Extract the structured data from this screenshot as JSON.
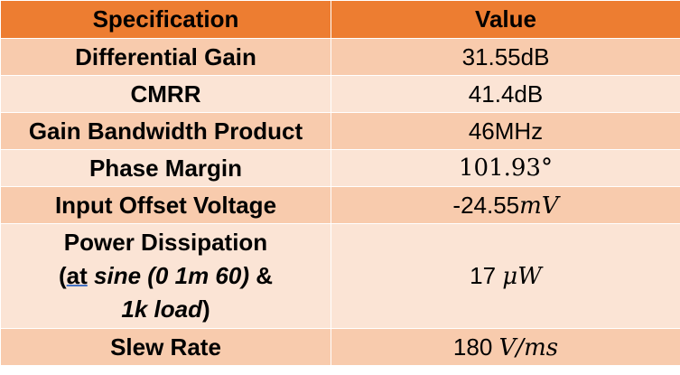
{
  "header": {
    "col1": "Specification",
    "col2": "Value"
  },
  "rows": [
    {
      "label": "Differential Gain",
      "value": "31.55dB"
    },
    {
      "label": "CMRR",
      "value": "41.4dB"
    },
    {
      "label": "Gain Bandwidth Product",
      "value": "46MHz"
    },
    {
      "label": "Phase Margin",
      "value": "101.93°"
    },
    {
      "label": "Input Offset Voltage",
      "value_num": "-24.55",
      "value_unit": "mV"
    },
    {
      "label_line1": "Power Dissipation",
      "label_open": "(",
      "label_at": "at",
      "label_space": " ",
      "label_sine": "sine (0 1m 60)",
      "label_amp": " &",
      "label_load": "1k load",
      "label_close": ")",
      "value_num": "17 ",
      "value_unit": "μW"
    },
    {
      "label": "Slew Rate",
      "value_num": "180 ",
      "value_unit": "V/ms"
    }
  ],
  "colors": {
    "header": "#ed7d31",
    "row_odd": "#f8cbad",
    "row_even": "#fbe4d5"
  }
}
